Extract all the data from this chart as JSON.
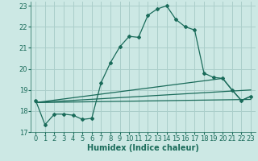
{
  "xlabel": "Humidex (Indice chaleur)",
  "xlim": [
    -0.5,
    23.5
  ],
  "ylim": [
    17,
    23.2
  ],
  "yticks": [
    17,
    18,
    19,
    20,
    21,
    22,
    23
  ],
  "xticks": [
    0,
    1,
    2,
    3,
    4,
    5,
    6,
    7,
    8,
    9,
    10,
    11,
    12,
    13,
    14,
    15,
    16,
    17,
    18,
    19,
    20,
    21,
    22,
    23
  ],
  "bg_color": "#cce8e4",
  "grid_color": "#aaceca",
  "line_color": "#1a6b5a",
  "line1_x": [
    0,
    1,
    2,
    3,
    4,
    5,
    6,
    7,
    8,
    9,
    10,
    11,
    12,
    13,
    14,
    15,
    16,
    17,
    18,
    19,
    20,
    21,
    22,
    23
  ],
  "line1_y": [
    18.5,
    17.35,
    17.85,
    17.85,
    17.8,
    17.6,
    17.65,
    19.35,
    20.3,
    21.05,
    21.55,
    21.5,
    22.55,
    22.85,
    23.0,
    22.35,
    22.0,
    21.85,
    19.8,
    19.6,
    19.55,
    19.0,
    18.5,
    18.7
  ],
  "line2_x": [
    0,
    23
  ],
  "line2_y": [
    18.4,
    18.55
  ],
  "line3_x": [
    0,
    23
  ],
  "line3_y": [
    18.4,
    19.0
  ],
  "line4_x": [
    0,
    20,
    21,
    22,
    23
  ],
  "line4_y": [
    18.4,
    19.55,
    19.0,
    18.5,
    18.7
  ],
  "xlabel_fontsize": 7,
  "tick_fontsize": 6
}
